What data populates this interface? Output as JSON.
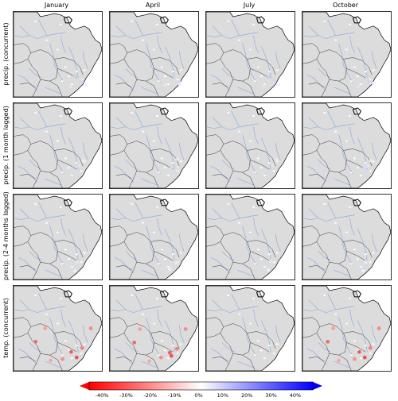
{
  "columns": [
    "January",
    "April",
    "July",
    "October"
  ],
  "rows": [
    "precip. (concurrent)",
    "precip. (1 month lagged)",
    "precip. (2-4 months lagged)",
    "temp. (concurrent)"
  ],
  "colorbar": {
    "ticks": [
      "-40%",
      "-30%",
      "-20%",
      "-10%",
      "0%",
      "10%",
      "20%",
      "30%",
      "40%"
    ],
    "colors": {
      "negative": "#ff0000",
      "zero": "#ffffff",
      "positive": "#0000ff"
    }
  },
  "colors": {
    "land": "#dcdcdc",
    "rivers": "#8faee0",
    "borders": "#333333"
  }
}
